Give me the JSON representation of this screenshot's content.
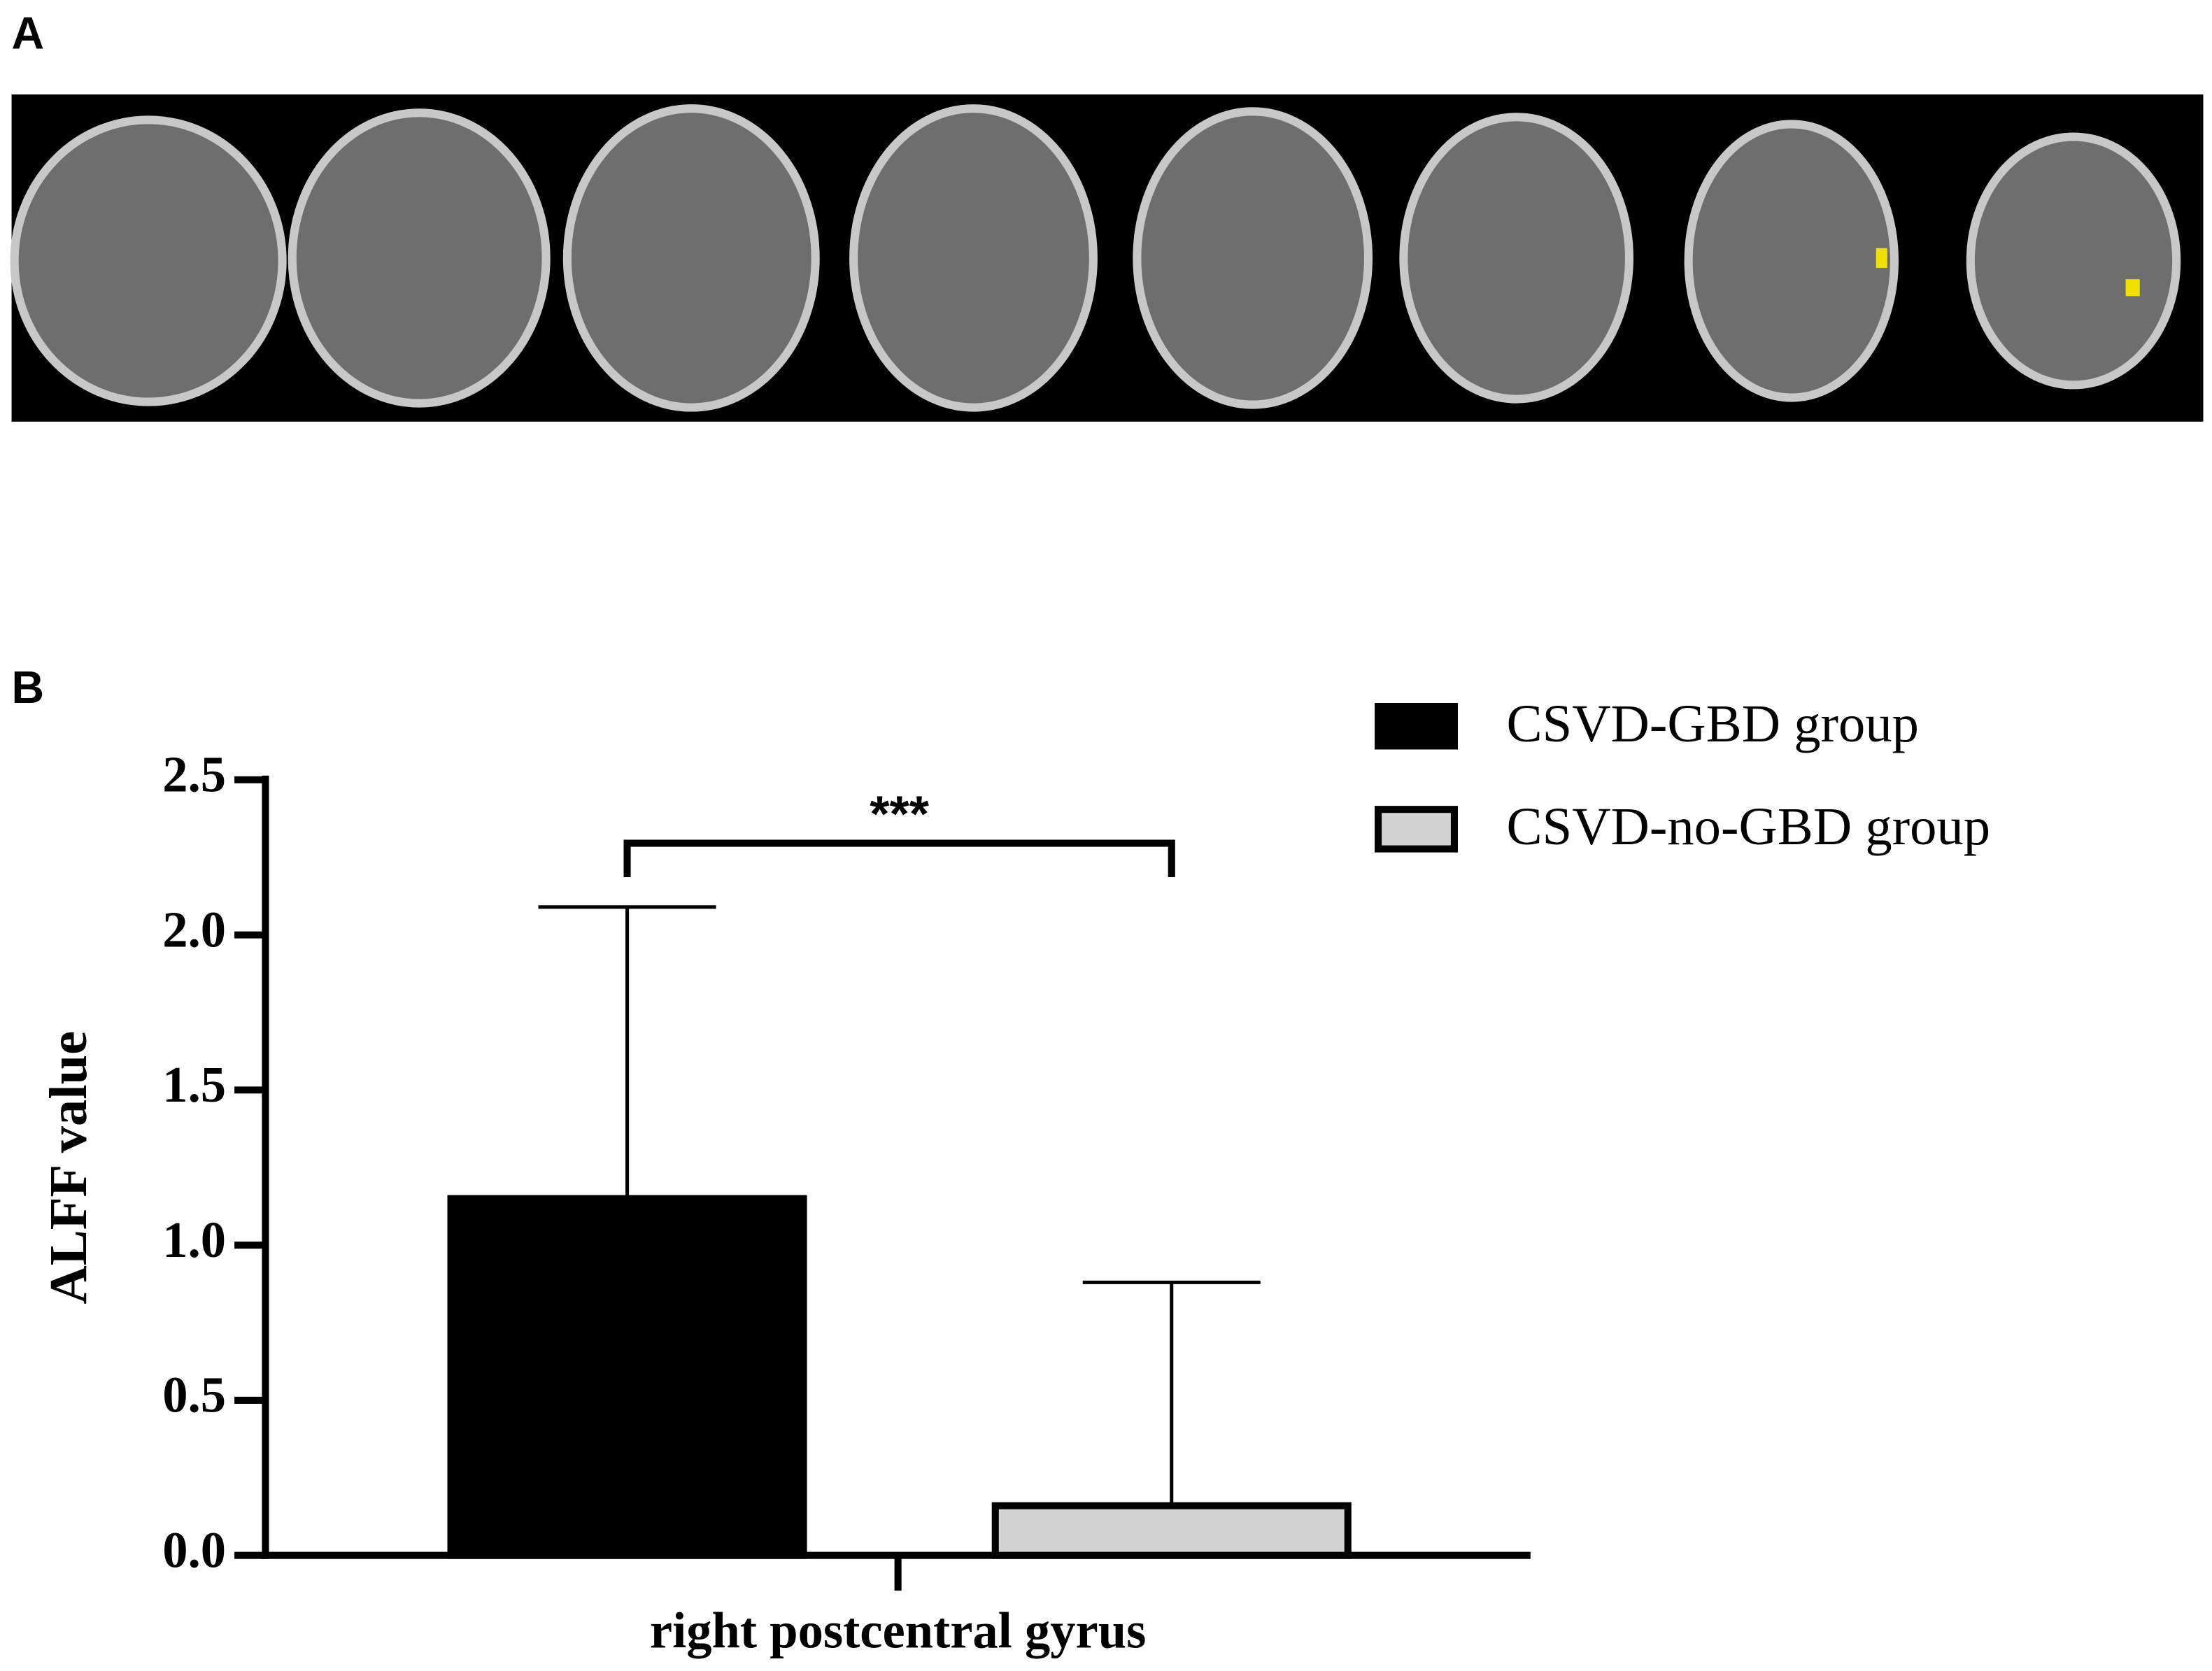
{
  "panel_labels": [
    "A",
    "B"
  ],
  "chart_data": {
    "type": "bar",
    "y_label": "ALFF value",
    "categories": [
      "right postcentral gyrus"
    ],
    "series": [
      {
        "name": "CSVD-GBD group",
        "color": "#000000",
        "values": [
          1.15
        ],
        "errors": [
          0.94
        ]
      },
      {
        "name": "CSVD-no-GBD group",
        "color": "#d3d3d3",
        "values": [
          0.16
        ],
        "errors": [
          0.72
        ]
      }
    ],
    "ylim": [
      0,
      2.5
    ],
    "yticks": [
      {
        "value": 0,
        "label": "0.0"
      },
      0.5,
      {
        "value": 1,
        "label": "1.0"
      },
      1.5,
      {
        "value": 2,
        "label": "2.0"
      },
      2.5
    ],
    "annotation": "***",
    "legend": "top-right"
  }
}
